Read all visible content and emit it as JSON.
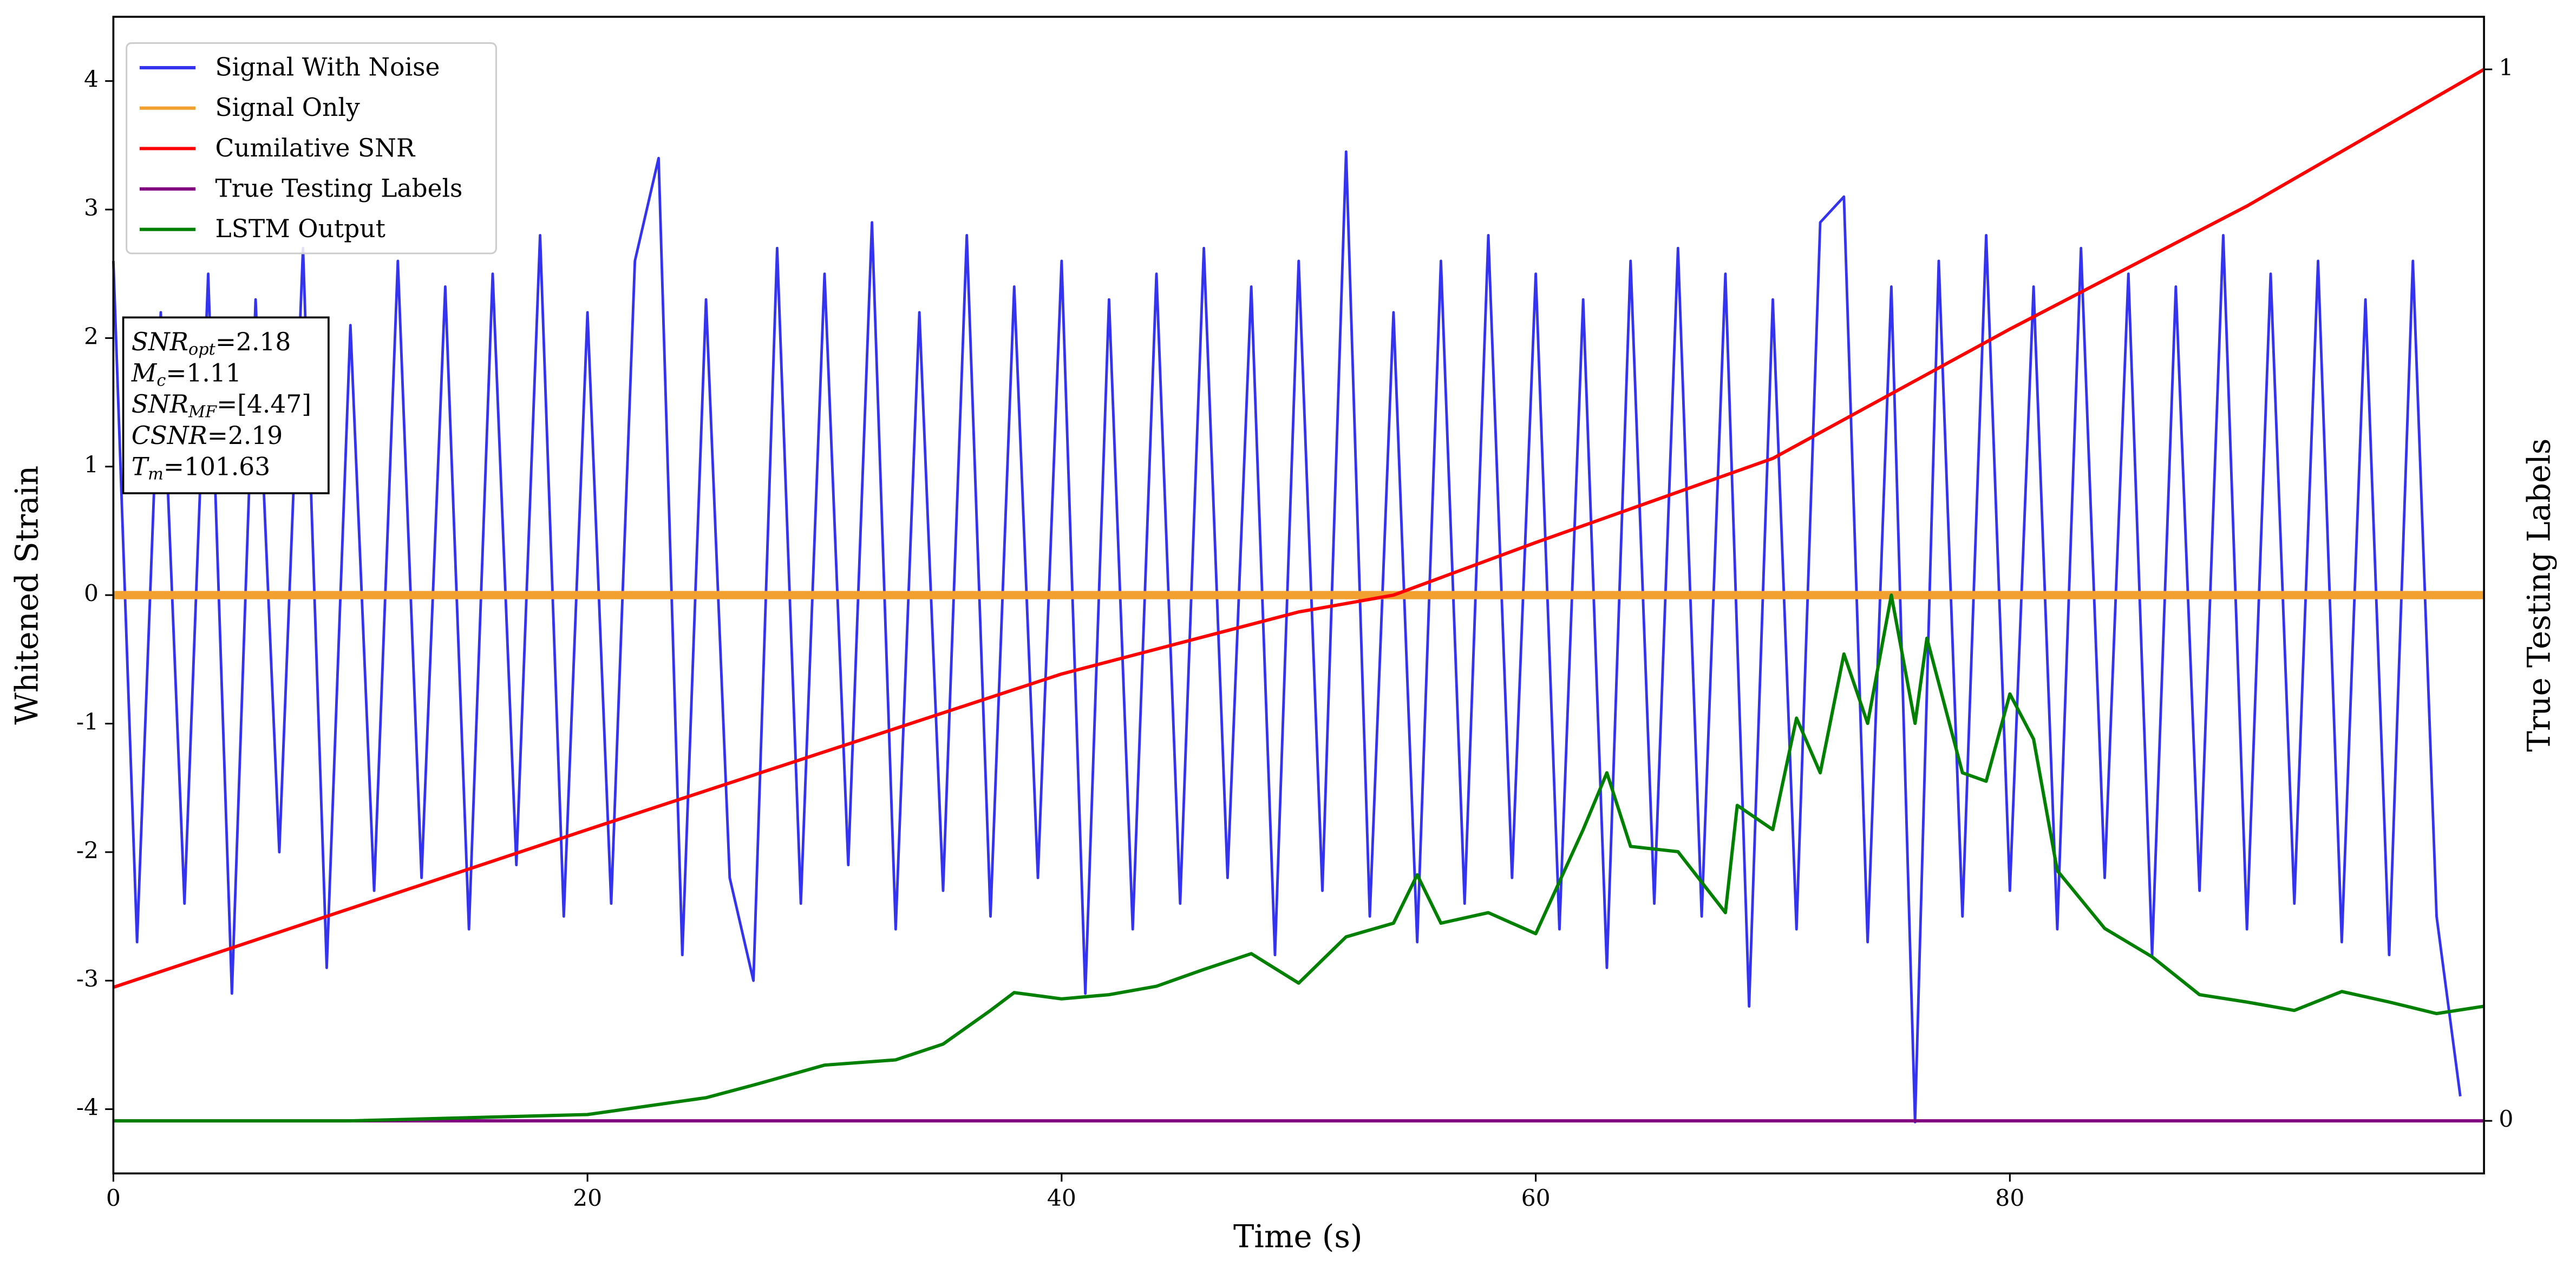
{
  "chart_data": {
    "type": "line",
    "xlabel": "Time (s)",
    "ylabel": "Whitened Strain",
    "y2label": "True Testing Labels",
    "xlim": [
      0,
      100
    ],
    "xticks": [
      0,
      20,
      40,
      60,
      80
    ],
    "ylim": [
      -4.5,
      4.5
    ],
    "yticks": [
      -4,
      -3,
      -2,
      -1,
      0,
      1,
      2,
      3,
      4
    ],
    "y2lim": [
      -0.05,
      1.05
    ],
    "y2ticks": [
      0,
      1
    ],
    "legend": "upper left",
    "series": [
      {
        "name": "Signal With Noise",
        "color": "#3333f0",
        "x": [
          0,
          1,
          2,
          3,
          4,
          5,
          6,
          7,
          8,
          9,
          10,
          11,
          12,
          13,
          14,
          15,
          16,
          17,
          18,
          19,
          20,
          21,
          22,
          23,
          24,
          25,
          26,
          27,
          28,
          29,
          30,
          31,
          32,
          33,
          34,
          35,
          36,
          37,
          38,
          39,
          40,
          41,
          42,
          43,
          44,
          45,
          46,
          47,
          48,
          49,
          50,
          51,
          52,
          53,
          54,
          55,
          56,
          57,
          58,
          59,
          60,
          61,
          62,
          63,
          64,
          65,
          66,
          67,
          68,
          69,
          70,
          71,
          72,
          73,
          74,
          75,
          76,
          77,
          78,
          79,
          80,
          81,
          82,
          83,
          84,
          85,
          86,
          87,
          88,
          89,
          90,
          91,
          92,
          93,
          94,
          95,
          96,
          97,
          98,
          99
        ],
        "values": [
          2.6,
          -2.7,
          2.2,
          -2.4,
          2.5,
          -3.1,
          2.3,
          -2.0,
          2.7,
          -2.9,
          2.1,
          -2.3,
          2.6,
          -2.2,
          2.4,
          -2.6,
          2.5,
          -2.1,
          2.8,
          -2.5,
          2.2,
          -2.4,
          2.6,
          3.4,
          -2.8,
          2.3,
          -2.2,
          -3.0,
          2.7,
          -2.4,
          2.5,
          -2.1,
          2.9,
          -2.6,
          2.2,
          -2.3,
          2.8,
          -2.5,
          2.4,
          -2.2,
          2.6,
          -3.1,
          2.3,
          -2.6,
          2.5,
          -2.4,
          2.7,
          -2.2,
          2.4,
          -2.8,
          2.6,
          -2.3,
          3.45,
          -2.5,
          2.2,
          -2.7,
          2.6,
          -2.4,
          2.8,
          -2.2,
          2.5,
          -2.6,
          2.3,
          -2.9,
          2.6,
          -2.4,
          2.7,
          -2.5,
          2.5,
          -3.2,
          2.3,
          -2.6,
          2.9,
          3.1,
          -2.7,
          2.4,
          -4.1,
          2.6,
          -2.5,
          2.8,
          -2.3,
          2.4,
          -2.6,
          2.7,
          -2.2,
          2.5,
          -2.8,
          2.4,
          -2.3,
          2.8,
          -2.6,
          2.5,
          -2.4,
          2.6,
          -2.7,
          2.3,
          -2.8,
          2.6,
          -2.5,
          -3.9
        ]
      },
      {
        "name": "Signal Only",
        "color": "#f2a030",
        "x": [
          0,
          25,
          50,
          75,
          100
        ],
        "values": [
          0,
          0,
          0,
          0,
          0
        ]
      },
      {
        "name": "Cumilative SNR",
        "color": "#ff0000",
        "axis": "y2",
        "x": [
          0,
          20,
          40,
          50,
          54,
          60,
          70,
          80,
          90,
          100
        ],
        "values": [
          0.127,
          0.277,
          0.425,
          0.484,
          0.5,
          0.55,
          0.63,
          0.753,
          0.87,
          1
        ]
      },
      {
        "name": "True Testing Labels",
        "color": "#800080",
        "axis": "y2",
        "x": [
          0,
          100
        ],
        "values": [
          0,
          0
        ]
      },
      {
        "name": "LSTM Output",
        "color": "#008000",
        "axis": "y2",
        "x": [
          0,
          10,
          15,
          20,
          25,
          27,
          30,
          33,
          35,
          37,
          38,
          40,
          42,
          44,
          46,
          48,
          50,
          52,
          54,
          55,
          56,
          58,
          60,
          62,
          63,
          64,
          66,
          68,
          68.5,
          70,
          71,
          72,
          73,
          74,
          75,
          76,
          76.5,
          78,
          79,
          80,
          81,
          82,
          84,
          86,
          88,
          90,
          92,
          94,
          96,
          98,
          100
        ],
        "values": [
          0,
          0,
          0.003,
          0.006,
          0.022,
          0.034,
          0.053,
          0.058,
          0.073,
          0.105,
          0.122,
          0.116,
          0.12,
          0.128,
          0.144,
          0.159,
          0.131,
          0.175,
          0.188,
          0.234,
          0.188,
          0.198,
          0.178,
          0.277,
          0.331,
          0.261,
          0.256,
          0.198,
          0.3,
          0.277,
          0.383,
          0.331,
          0.444,
          0.378,
          0.5,
          0.378,
          0.459,
          0.331,
          0.323,
          0.406,
          0.363,
          0.238,
          0.183,
          0.156,
          0.12,
          0.113,
          0.105,
          0.123,
          0.113,
          0.102,
          0.109
        ]
      }
    ],
    "annotations": [
      {
        "name": "SNR",
        "sub": "opt",
        "text": "=2.18"
      },
      {
        "name": "M",
        "sub": "c",
        "text": "=1.11"
      },
      {
        "name": "SNR",
        "sub": "MF",
        "text": "=[4.47]"
      },
      {
        "name": "CSNR",
        "text": "=2.19"
      },
      {
        "name": "T",
        "sub": "m",
        "text": "=101.63"
      }
    ]
  }
}
